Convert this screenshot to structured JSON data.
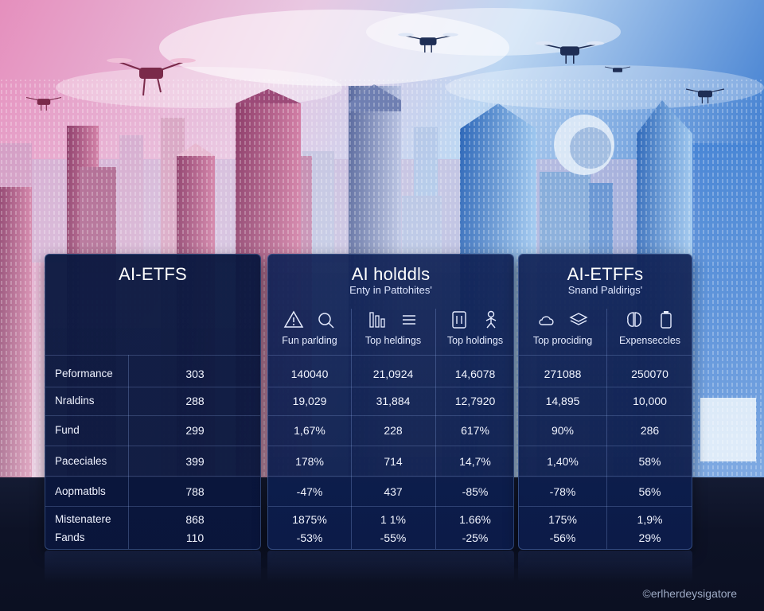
{
  "panels": {
    "a": {
      "title": "AI-ETFS",
      "rows": [
        {
          "label": "Peformance",
          "value": "303"
        },
        {
          "label": "Nraldins",
          "value": "288"
        },
        {
          "label": "Fund",
          "value": "299"
        },
        {
          "label": "Paceciales",
          "value": "399"
        },
        {
          "label": "Aopmatbls",
          "value": "788"
        },
        {
          "label": "Mistenatere",
          "value": "868"
        },
        {
          "label": "Fands",
          "value": "110"
        }
      ]
    },
    "b": {
      "title": "AI holddls",
      "subtitle": "Enty in Pattohites'",
      "columns": [
        "Fun parlding",
        "Top heldings",
        "Top holdings"
      ],
      "icons": [
        "warning-triangle-icon",
        "search-icon",
        "bar-chart-icon",
        "list-icon",
        "calculator-icon",
        "person-icon"
      ],
      "rows": [
        [
          "140040",
          "21,0924",
          "14,6078"
        ],
        [
          "19,029",
          "31,884",
          "12,7920"
        ],
        [
          "1,67%",
          "228",
          "617%"
        ],
        [
          "178%",
          "714",
          "14,7%"
        ],
        [
          "-47%",
          "437",
          "-85%"
        ],
        [
          "1875%",
          "1 1%",
          "1.66%"
        ],
        [
          "-53%",
          "-55%",
          "-25%"
        ]
      ]
    },
    "c": {
      "title": "AI-ETFFs",
      "subtitle": "Snand Paldirigs'",
      "columns": [
        "Top prociding",
        "Expenseccles"
      ],
      "icons": [
        "cloud-icon",
        "layers-icon",
        "brain-icon",
        "battery-icon"
      ],
      "rows": [
        [
          "271088",
          "250070"
        ],
        [
          "14,895",
          "10,000"
        ],
        [
          "90%",
          "286"
        ],
        [
          "1,40%",
          "58%"
        ],
        [
          "-78%",
          "56%"
        ],
        [
          "175%",
          "1,9%"
        ],
        [
          "-56%",
          "29%"
        ]
      ]
    }
  },
  "watermark": "©erlherdeysigatore",
  "colors": {
    "panel": "#0f2256",
    "accent": "#5a8ee0",
    "sky_top": "#f0a0c8",
    "sky_right": "#3a7fd4"
  }
}
